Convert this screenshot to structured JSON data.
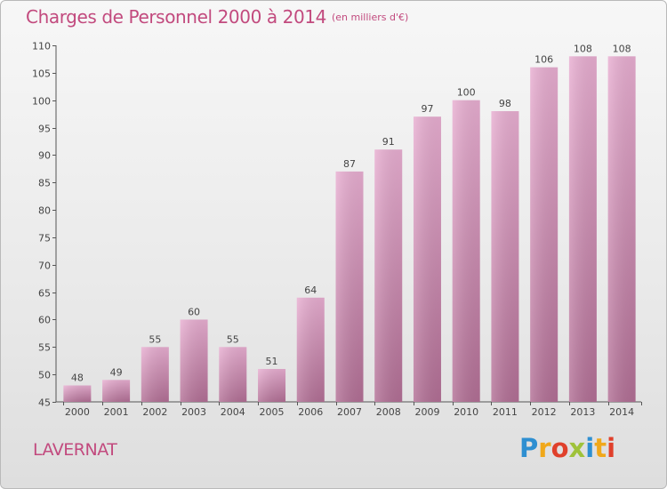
{
  "header": {
    "title": "Charges de Personnel 2000 à 2014",
    "unit": "(en milliers d'€)"
  },
  "footer": {
    "commune": "LAVERNAT",
    "brand": "Proxiti",
    "brand_letters": [
      {
        "ch": "P",
        "color": "#2e8fd1"
      },
      {
        "ch": "r",
        "color": "#f0a81a"
      },
      {
        "ch": "o",
        "color": "#e0402b"
      },
      {
        "ch": "x",
        "color": "#9fc23a"
      },
      {
        "ch": "i",
        "color": "#2e8fd1"
      },
      {
        "ch": "t",
        "color": "#f0a81a"
      },
      {
        "ch": "i",
        "color": "#e0402b"
      }
    ]
  },
  "colors": {
    "accent": "#c24a7e",
    "bar_top": "#e8aed1",
    "bar_bottom": "#b26f95"
  },
  "chart_data": {
    "type": "bar",
    "title": "Charges de Personnel 2000 à 2014",
    "subtitle": "(en milliers d'€)",
    "xlabel": "",
    "ylabel": "",
    "categories": [
      "2000",
      "2001",
      "2002",
      "2003",
      "2004",
      "2005",
      "2006",
      "2007",
      "2008",
      "2009",
      "2010",
      "2011",
      "2012",
      "2013",
      "2014"
    ],
    "values": [
      48,
      49,
      55,
      60,
      55,
      51,
      64,
      87,
      91,
      97,
      100,
      98,
      106,
      108,
      108
    ],
    "ylim": [
      45,
      110
    ],
    "yticks": [
      45,
      50,
      55,
      60,
      65,
      70,
      75,
      80,
      85,
      90,
      95,
      100,
      105,
      110
    ],
    "grid": false,
    "legend": "none"
  }
}
